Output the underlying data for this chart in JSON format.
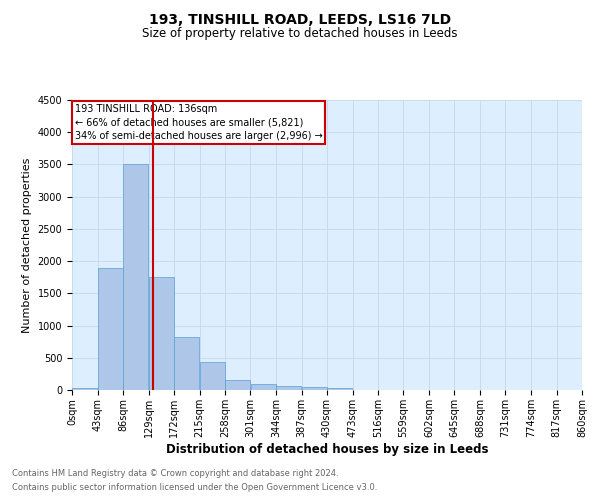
{
  "title": "193, TINSHILL ROAD, LEEDS, LS16 7LD",
  "subtitle": "Size of property relative to detached houses in Leeds",
  "xlabel": "Distribution of detached houses by size in Leeds",
  "ylabel": "Number of detached properties",
  "annotation_line1": "193 TINSHILL ROAD: 136sqm",
  "annotation_line2": "← 66% of detached houses are smaller (5,821)",
  "annotation_line3": "34% of semi-detached houses are larger (2,996) →",
  "footnote1": "Contains HM Land Registry data © Crown copyright and database right 2024.",
  "footnote2": "Contains public sector information licensed under the Open Government Licence v3.0.",
  "property_size": 136,
  "bin_edges": [
    0,
    43,
    86,
    129,
    172,
    215,
    258,
    301,
    344,
    387,
    430,
    473,
    516,
    559,
    602,
    645,
    688,
    731,
    774,
    817,
    860
  ],
  "bin_labels": [
    "0sqm",
    "43sqm",
    "86sqm",
    "129sqm",
    "172sqm",
    "215sqm",
    "258sqm",
    "301sqm",
    "344sqm",
    "387sqm",
    "430sqm",
    "473sqm",
    "516sqm",
    "559sqm",
    "602sqm",
    "645sqm",
    "688sqm",
    "731sqm",
    "774sqm",
    "817sqm",
    "860sqm"
  ],
  "bar_heights": [
    30,
    1900,
    3500,
    1750,
    830,
    440,
    150,
    95,
    60,
    45,
    30,
    0,
    0,
    0,
    0,
    0,
    0,
    0,
    0,
    0
  ],
  "bar_color": "#aec6e8",
  "bar_edge_color": "#5a9fd4",
  "vline_color": "#cc0000",
  "vline_x": 136,
  "box_color": "#cc0000",
  "ylim": [
    0,
    4500
  ],
  "yticks": [
    0,
    500,
    1000,
    1500,
    2000,
    2500,
    3000,
    3500,
    4000,
    4500
  ],
  "grid_color": "#c8d8e8",
  "background_color": "#ddeeff",
  "title_fontsize": 10,
  "subtitle_fontsize": 8.5,
  "xlabel_fontsize": 8.5,
  "ylabel_fontsize": 8,
  "tick_fontsize": 7,
  "annotation_fontsize": 7,
  "footnote_fontsize": 6
}
